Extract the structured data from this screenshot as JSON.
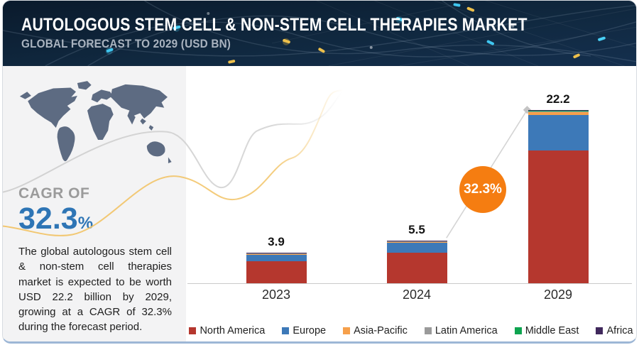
{
  "header": {
    "title": "AUTOLOGOUS STEM CELL & NON-STEM CELL THERAPIES MARKET",
    "subtitle": "GLOBAL FORECAST TO 2029 (USD BN)"
  },
  "sidebar": {
    "cagr_label": "CAGR OF",
    "cagr_value": "32.3",
    "cagr_unit": "%",
    "summary": "The global autologous stem cell & non-stem cell therapies market is expected to be worth USD 22.2 billion by 2029, growing at a CAGR of 32.3% during the forecast period."
  },
  "chart": {
    "badge_text": "32.3%"
  },
  "colors": {
    "header_bg": "#0c1f35",
    "cagr_blue": "#2e75b5",
    "badge_orange": "#f57d11",
    "sidebar_bg": "#f3f3f4",
    "map_gray_blue": "#5d6b82"
  },
  "chart_data": {
    "type": "bar",
    "stacked": true,
    "categories": [
      "2023",
      "2024",
      "2029"
    ],
    "totals": [
      3.9,
      5.5,
      22.2
    ],
    "total_labels": [
      "3.9",
      "5.5",
      "22.2"
    ],
    "series": [
      {
        "name": "North America",
        "color": "#b5372e",
        "values": [
          2.8,
          3.95,
          17.0
        ]
      },
      {
        "name": "Europe",
        "color": "#3d79b8",
        "values": [
          0.9,
          1.25,
          4.55
        ]
      },
      {
        "name": "Asia-Pacific",
        "color": "#f6a04b",
        "values": [
          0.02,
          0.05,
          0.35
        ]
      },
      {
        "name": "Latin America",
        "color": "#9a9a9a",
        "values": [
          0.15,
          0.15,
          0.12
        ]
      },
      {
        "name": "Middle East",
        "color": "#0ea450",
        "values": [
          0.01,
          0.03,
          0.06
        ]
      },
      {
        "name": "Africa",
        "color": "#40285c",
        "values": [
          0.02,
          0.07,
          0.12
        ]
      }
    ],
    "title": "Autologous Stem Cell & Non-Stem Cell Therapies Market",
    "xlabel": "",
    "ylabel": "USD BN",
    "ylim": [
      0,
      24
    ],
    "grid": false,
    "legend_position": "bottom",
    "annotations": [
      "32.3%"
    ]
  }
}
